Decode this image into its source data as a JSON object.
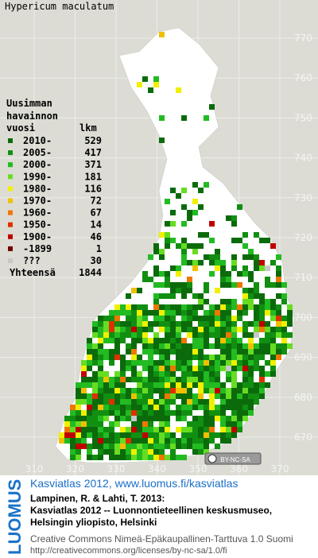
{
  "title": "Hypericum maculatum",
  "legend": {
    "heading": [
      "Uusimman",
      "havainnon"
    ],
    "col1": "vuosi",
    "col2": "lkm",
    "items": [
      {
        "label": "2010-",
        "count": 529,
        "color": "#0b6b0b"
      },
      {
        "label": "2005-",
        "count": 417,
        "color": "#118f11"
      },
      {
        "label": "2000-",
        "count": 371,
        "color": "#22bb22"
      },
      {
        "label": "1990-",
        "count": 181,
        "color": "#66dd22"
      },
      {
        "label": "1980-",
        "count": 116,
        "color": "#f0f000"
      },
      {
        "label": "1970-",
        "count": 72,
        "color": "#f0c000"
      },
      {
        "label": "1960-",
        "count": 67,
        "color": "#ee7700"
      },
      {
        "label": "1950-",
        "count": 14,
        "color": "#e03000"
      },
      {
        "label": "1900-",
        "count": 46,
        "color": "#c00000"
      },
      {
        "label": "-1899",
        "count": 1,
        "color": "#700000"
      },
      {
        "label": "???",
        "count": 30,
        "color": "#c8c8c8"
      }
    ],
    "total_label": "Yhteensä",
    "total": 1844
  },
  "axes": {
    "x_ticks": [
      310,
      320,
      330,
      340,
      350,
      360,
      370
    ],
    "y_ticks": [
      670,
      680,
      690,
      700,
      710,
      720,
      730,
      740,
      750,
      760,
      770
    ]
  },
  "license_badge": "BY-NC-SA",
  "footer": {
    "brand": "LUOMUS",
    "link": "Kasviatlas 2012, www.luomus.fi/kasviatlas",
    "citation": [
      "Lampinen, R. & Lahti, T. 2013:",
      "Kasviatlas 2012 -- Luonnontieteellinen keskusmuseo,",
      "Helsingin yliopisto, Helsinki"
    ],
    "license": [
      "Creative Commons Nimeä-Epäkaupallinen-Tarttuva 1.0 Suomi",
      "http://creativecommons.org/licenses/by-nc-sa/1.0/fi"
    ]
  }
}
